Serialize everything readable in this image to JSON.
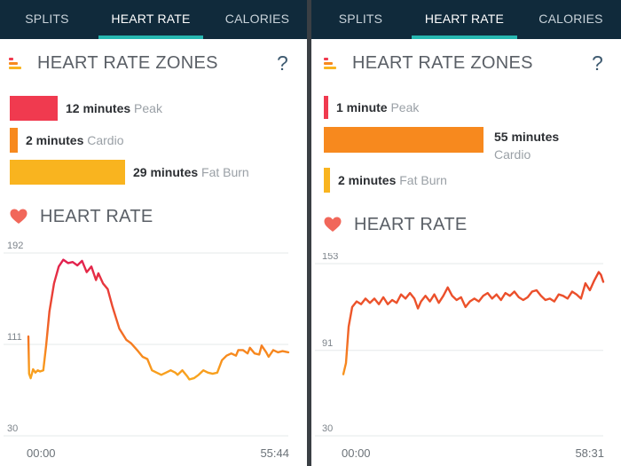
{
  "colors": {
    "tabbar": "#102a3b",
    "accent": "#26b6b0",
    "peak": "#f03a4f",
    "cardio": "#f7891e",
    "fatburn": "#f9b41f"
  },
  "icons": [
    "zones-bars-icon",
    "help-icon",
    "heart-icon"
  ],
  "panels": [
    {
      "tabs": [
        {
          "label": "SPLITS"
        },
        {
          "label": "HEART RATE",
          "active": true
        },
        {
          "label": "CALORIES"
        }
      ],
      "zones_title": "HEART RATE ZONES",
      "help": "?",
      "zones": [
        {
          "value": "12 minutes",
          "name": "Peak",
          "minutes": 12
        },
        {
          "value": "2 minutes",
          "name": "Cardio",
          "minutes": 2
        },
        {
          "value": "29 minutes",
          "name": "Fat Burn",
          "minutes": 29
        }
      ],
      "hr_title": "HEART RATE",
      "chart_data": {
        "type": "line",
        "y_ticks": [
          192,
          111,
          30
        ],
        "ylim": [
          30,
          192
        ],
        "x_start": "00:00",
        "x_end": "55:44",
        "duration_min": 55.73,
        "points": [
          [
            0,
            118
          ],
          [
            0.15,
            85
          ],
          [
            0.5,
            81
          ],
          [
            1,
            89
          ],
          [
            1.5,
            86
          ],
          [
            2,
            88
          ],
          [
            2.5,
            87
          ],
          [
            3.2,
            88
          ],
          [
            3.8,
            110
          ],
          [
            4.5,
            140
          ],
          [
            5.5,
            165
          ],
          [
            6.5,
            180
          ],
          [
            7.5,
            186
          ],
          [
            8.5,
            183
          ],
          [
            9.5,
            184
          ],
          [
            10.5,
            181
          ],
          [
            11.5,
            185
          ],
          [
            12.5,
            175
          ],
          [
            13.5,
            180
          ],
          [
            14.5,
            168
          ],
          [
            15,
            174
          ],
          [
            16,
            165
          ],
          [
            17,
            160
          ],
          [
            18,
            145
          ],
          [
            19.5,
            125
          ],
          [
            21,
            115
          ],
          [
            22,
            112
          ],
          [
            23.5,
            105
          ],
          [
            24.5,
            100
          ],
          [
            25.5,
            98
          ],
          [
            26.5,
            88
          ],
          [
            27.5,
            86
          ],
          [
            28.5,
            84
          ],
          [
            29.5,
            86
          ],
          [
            30.5,
            88
          ],
          [
            31.5,
            86
          ],
          [
            32,
            84
          ],
          [
            33,
            88
          ],
          [
            34,
            83
          ],
          [
            34.5,
            80
          ],
          [
            35.5,
            81
          ],
          [
            36.5,
            84
          ],
          [
            37.5,
            88
          ],
          [
            38.5,
            86
          ],
          [
            39.5,
            85
          ],
          [
            40.5,
            86
          ],
          [
            41.5,
            97
          ],
          [
            42.5,
            101
          ],
          [
            43.5,
            103
          ],
          [
            44.5,
            101
          ],
          [
            45,
            106
          ],
          [
            46,
            106
          ],
          [
            47,
            103
          ],
          [
            47.5,
            108
          ],
          [
            48.5,
            103
          ],
          [
            49.5,
            102
          ],
          [
            50,
            110
          ],
          [
            51,
            104
          ],
          [
            51.5,
            100
          ],
          [
            52.5,
            106
          ],
          [
            53.5,
            104
          ],
          [
            54.5,
            105
          ],
          [
            55.73,
            104
          ]
        ]
      }
    },
    {
      "tabs": [
        {
          "label": "SPLITS"
        },
        {
          "label": "HEART RATE",
          "active": true
        },
        {
          "label": "CALORIES"
        }
      ],
      "zones_title": "HEART RATE ZONES",
      "help": "?",
      "zones": [
        {
          "value": "1 minute",
          "name": "Peak",
          "minutes": 1
        },
        {
          "value": "55 minutes",
          "name": "Cardio",
          "minutes": 55
        },
        {
          "value": "2 minutes",
          "name": "Fat Burn",
          "minutes": 2
        }
      ],
      "hr_title": "HEART RATE",
      "chart_data": {
        "type": "line",
        "y_ticks": [
          153,
          91,
          30
        ],
        "ylim": [
          30,
          153
        ],
        "x_start": "00:00",
        "x_end": "58:31",
        "duration_min": 58.52,
        "points": [
          [
            0,
            74
          ],
          [
            0.6,
            82
          ],
          [
            1.2,
            108
          ],
          [
            2,
            122
          ],
          [
            3,
            126
          ],
          [
            4,
            124
          ],
          [
            5,
            128
          ],
          [
            6,
            125
          ],
          [
            7,
            128
          ],
          [
            8,
            124
          ],
          [
            9,
            129
          ],
          [
            10,
            124
          ],
          [
            11,
            127
          ],
          [
            12,
            125
          ],
          [
            13,
            131
          ],
          [
            14,
            128
          ],
          [
            15,
            132
          ],
          [
            16,
            128
          ],
          [
            16.8,
            121
          ],
          [
            17.5,
            126
          ],
          [
            18.5,
            130
          ],
          [
            19.5,
            126
          ],
          [
            20.5,
            131
          ],
          [
            21.5,
            125
          ],
          [
            22.5,
            130
          ],
          [
            23.5,
            136
          ],
          [
            24.5,
            130
          ],
          [
            25.5,
            127
          ],
          [
            26.5,
            129
          ],
          [
            27.5,
            122
          ],
          [
            28.5,
            126
          ],
          [
            29.5,
            128
          ],
          [
            30.5,
            126
          ],
          [
            31.5,
            130
          ],
          [
            32.5,
            132
          ],
          [
            33.5,
            128
          ],
          [
            34.5,
            131
          ],
          [
            35.5,
            127
          ],
          [
            36.5,
            132
          ],
          [
            37.5,
            130
          ],
          [
            38.5,
            133
          ],
          [
            39.5,
            129
          ],
          [
            40.5,
            127
          ],
          [
            41.5,
            129
          ],
          [
            42.5,
            133
          ],
          [
            43.5,
            134
          ],
          [
            44.5,
            130
          ],
          [
            45.5,
            127
          ],
          [
            46.5,
            128
          ],
          [
            47.5,
            126
          ],
          [
            48.5,
            131
          ],
          [
            49.5,
            130
          ],
          [
            50.5,
            128
          ],
          [
            51.5,
            133
          ],
          [
            52.5,
            131
          ],
          [
            53.5,
            128
          ],
          [
            54.5,
            139
          ],
          [
            55.5,
            134
          ],
          [
            56.5,
            141
          ],
          [
            57.5,
            147
          ],
          [
            58,
            145
          ],
          [
            58.52,
            140
          ]
        ]
      }
    }
  ]
}
